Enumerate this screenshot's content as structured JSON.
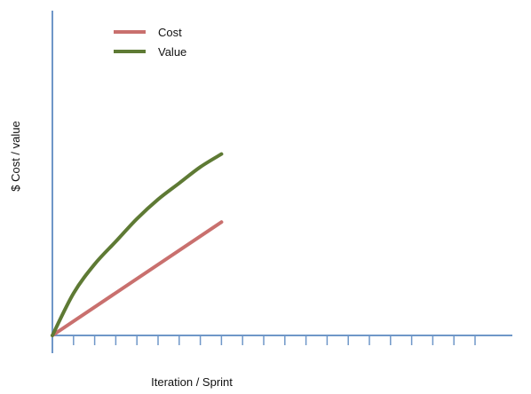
{
  "chart_data": {
    "type": "line",
    "title": "",
    "xlabel": "Iteration / Sprint",
    "ylabel": "$ Cost / value",
    "x_tick_count": 20,
    "grid": false,
    "legend_position": "top-left",
    "series": [
      {
        "name": "Cost",
        "color": "#c9706e",
        "x": [
          0,
          8
        ],
        "y": [
          0,
          0.35
        ]
      },
      {
        "name": "Value",
        "color": "#5e7a34",
        "x": [
          0,
          1,
          2,
          3,
          4,
          5,
          6,
          7,
          8
        ],
        "y": [
          0,
          0.13,
          0.22,
          0.29,
          0.36,
          0.42,
          0.47,
          0.52,
          0.56
        ]
      }
    ],
    "xlim": [
      0,
      20
    ],
    "ylim": [
      0,
      1
    ]
  },
  "colors": {
    "axis": "#6f97c8",
    "cost": "#c9706e",
    "value": "#5e7a34"
  }
}
